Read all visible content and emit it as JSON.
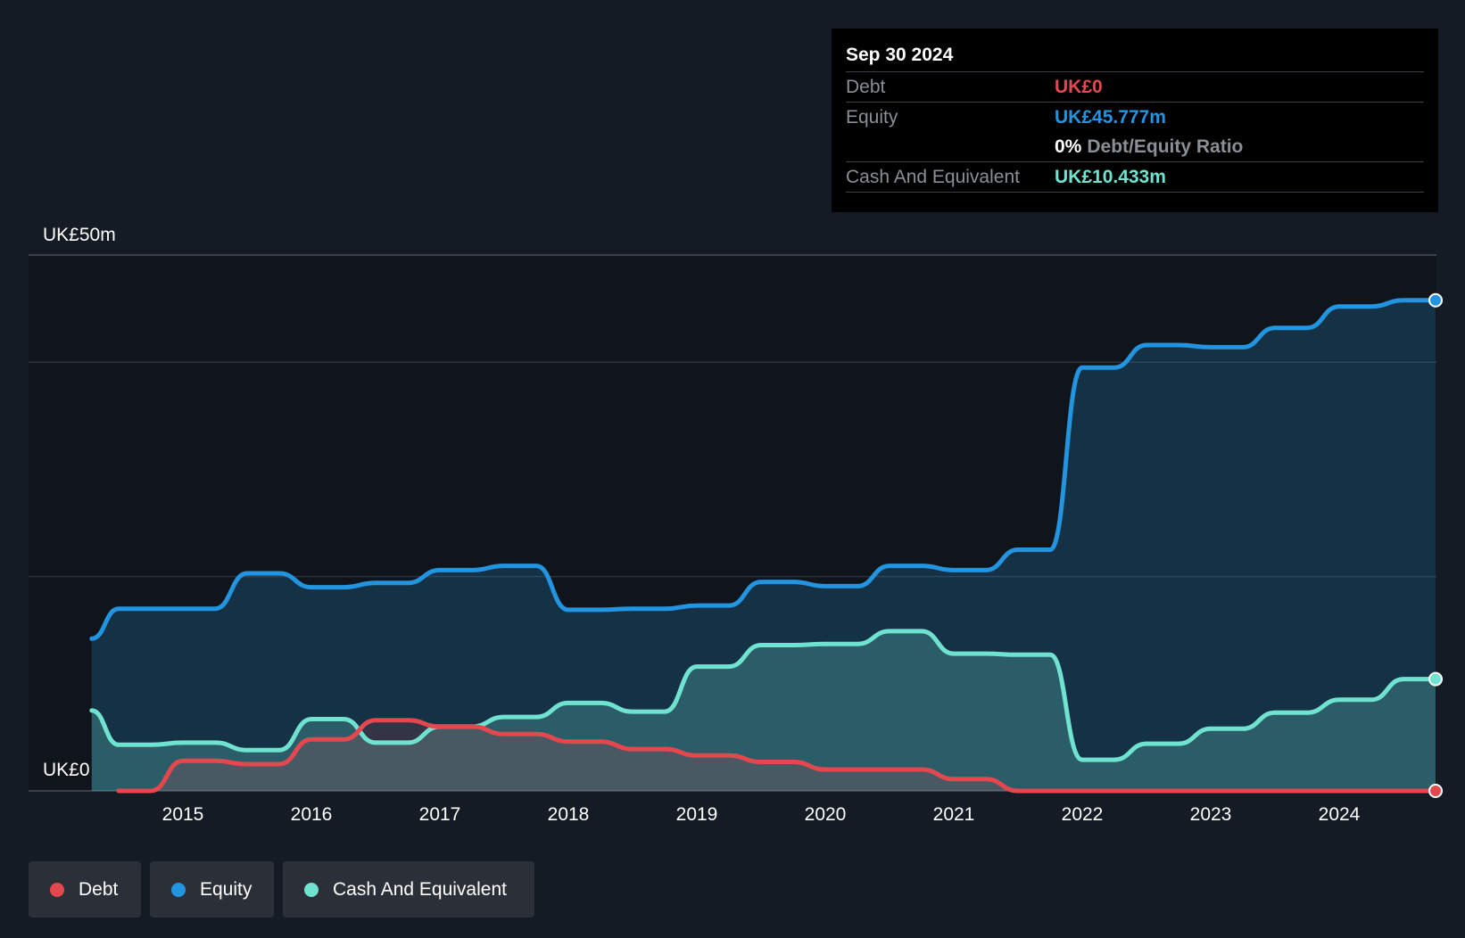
{
  "tooltip": {
    "date": "Sep 30 2024",
    "debt_label": "Debt",
    "debt_value": "UK£0",
    "equity_label": "Equity",
    "equity_value": "UK£45.777m",
    "ratio_pct": "0%",
    "ratio_label": "Debt/Equity Ratio",
    "cash_label": "Cash And Equivalent",
    "cash_value": "UK£10.433m"
  },
  "legend": {
    "debt": "Debt",
    "equity": "Equity",
    "cash": "Cash And Equivalent"
  },
  "colors": {
    "debt": "#e5474f",
    "equity": "#2394df",
    "cash": "#6fe3cf",
    "background": "#151b24"
  },
  "chart_data": {
    "type": "area",
    "ylim": [
      0,
      50
    ],
    "y_tick_labels": [
      "UK£0",
      "UK£50m"
    ],
    "x_tick_labels": [
      "2015",
      "2016",
      "2017",
      "2018",
      "2019",
      "2020",
      "2021",
      "2022",
      "2023",
      "2024"
    ],
    "grid": true,
    "legend_position": "bottom-left",
    "series": [
      {
        "name": "Equity",
        "key": "equity",
        "points": [
          [
            2014.29,
            14.2
          ],
          [
            2014.5,
            17.0
          ],
          [
            2015.25,
            17.0
          ],
          [
            2015.5,
            20.3
          ],
          [
            2015.75,
            20.3
          ],
          [
            2016.0,
            19.0
          ],
          [
            2016.25,
            19.0
          ],
          [
            2016.5,
            19.4
          ],
          [
            2016.75,
            19.4
          ],
          [
            2017.0,
            20.6
          ],
          [
            2017.25,
            20.6
          ],
          [
            2017.5,
            21.0
          ],
          [
            2017.75,
            21.0
          ],
          [
            2018.0,
            16.9
          ],
          [
            2018.25,
            16.9
          ],
          [
            2018.5,
            17.0
          ],
          [
            2018.75,
            17.0
          ],
          [
            2019.0,
            17.3
          ],
          [
            2019.25,
            17.3
          ],
          [
            2019.5,
            19.5
          ],
          [
            2019.75,
            19.5
          ],
          [
            2020.0,
            19.1
          ],
          [
            2020.25,
            19.1
          ],
          [
            2020.5,
            21.0
          ],
          [
            2020.75,
            21.0
          ],
          [
            2021.0,
            20.6
          ],
          [
            2021.25,
            20.6
          ],
          [
            2021.5,
            22.5
          ],
          [
            2021.75,
            22.5
          ],
          [
            2022.0,
            39.5
          ],
          [
            2022.25,
            39.5
          ],
          [
            2022.5,
            41.6
          ],
          [
            2022.75,
            41.6
          ],
          [
            2023.0,
            41.4
          ],
          [
            2023.25,
            41.4
          ],
          [
            2023.5,
            43.2
          ],
          [
            2023.75,
            43.2
          ],
          [
            2024.0,
            45.2
          ],
          [
            2024.25,
            45.2
          ],
          [
            2024.5,
            45.777
          ],
          [
            2024.75,
            45.777
          ]
        ]
      },
      {
        "name": "Cash And Equivalent",
        "key": "cash",
        "points": [
          [
            2014.29,
            7.5
          ],
          [
            2014.5,
            4.3
          ],
          [
            2014.75,
            4.3
          ],
          [
            2015.0,
            4.5
          ],
          [
            2015.25,
            4.5
          ],
          [
            2015.5,
            3.8
          ],
          [
            2015.75,
            3.8
          ],
          [
            2016.0,
            6.7
          ],
          [
            2016.25,
            6.7
          ],
          [
            2016.5,
            4.5
          ],
          [
            2016.75,
            4.5
          ],
          [
            2017.0,
            6.0
          ],
          [
            2017.25,
            6.0
          ],
          [
            2017.5,
            6.9
          ],
          [
            2017.75,
            6.9
          ],
          [
            2018.0,
            8.2
          ],
          [
            2018.25,
            8.2
          ],
          [
            2018.5,
            7.4
          ],
          [
            2018.75,
            7.4
          ],
          [
            2019.0,
            11.6
          ],
          [
            2019.25,
            11.6
          ],
          [
            2019.5,
            13.6
          ],
          [
            2019.75,
            13.6
          ],
          [
            2020.0,
            13.7
          ],
          [
            2020.25,
            13.7
          ],
          [
            2020.5,
            14.9
          ],
          [
            2020.75,
            14.9
          ],
          [
            2021.0,
            12.8
          ],
          [
            2021.25,
            12.8
          ],
          [
            2021.5,
            12.7
          ],
          [
            2021.75,
            12.7
          ],
          [
            2022.0,
            2.9
          ],
          [
            2022.25,
            2.9
          ],
          [
            2022.5,
            4.4
          ],
          [
            2022.75,
            4.4
          ],
          [
            2023.0,
            5.8
          ],
          [
            2023.25,
            5.8
          ],
          [
            2023.5,
            7.3
          ],
          [
            2023.75,
            7.3
          ],
          [
            2024.0,
            8.5
          ],
          [
            2024.25,
            8.5
          ],
          [
            2024.5,
            10.433
          ],
          [
            2024.75,
            10.433
          ]
        ]
      },
      {
        "name": "Debt",
        "key": "debt",
        "points": [
          [
            2014.5,
            0.0
          ],
          [
            2014.75,
            0.0
          ],
          [
            2015.0,
            2.8
          ],
          [
            2015.25,
            2.8
          ],
          [
            2015.5,
            2.5
          ],
          [
            2015.75,
            2.5
          ],
          [
            2016.0,
            4.8
          ],
          [
            2016.25,
            4.8
          ],
          [
            2016.5,
            6.6
          ],
          [
            2016.75,
            6.6
          ],
          [
            2017.0,
            6.0
          ],
          [
            2017.25,
            6.0
          ],
          [
            2017.5,
            5.3
          ],
          [
            2017.75,
            5.3
          ],
          [
            2018.0,
            4.6
          ],
          [
            2018.25,
            4.6
          ],
          [
            2018.5,
            3.9
          ],
          [
            2018.75,
            3.9
          ],
          [
            2019.0,
            3.3
          ],
          [
            2019.25,
            3.3
          ],
          [
            2019.5,
            2.7
          ],
          [
            2019.75,
            2.7
          ],
          [
            2020.0,
            2.0
          ],
          [
            2020.25,
            2.0
          ],
          [
            2020.5,
            2.0
          ],
          [
            2020.75,
            2.0
          ],
          [
            2021.0,
            1.1
          ],
          [
            2021.25,
            1.1
          ],
          [
            2021.5,
            0.0
          ],
          [
            2021.75,
            0.0
          ],
          [
            2022.0,
            0.0
          ],
          [
            2024.75,
            0.0
          ]
        ]
      }
    ]
  }
}
